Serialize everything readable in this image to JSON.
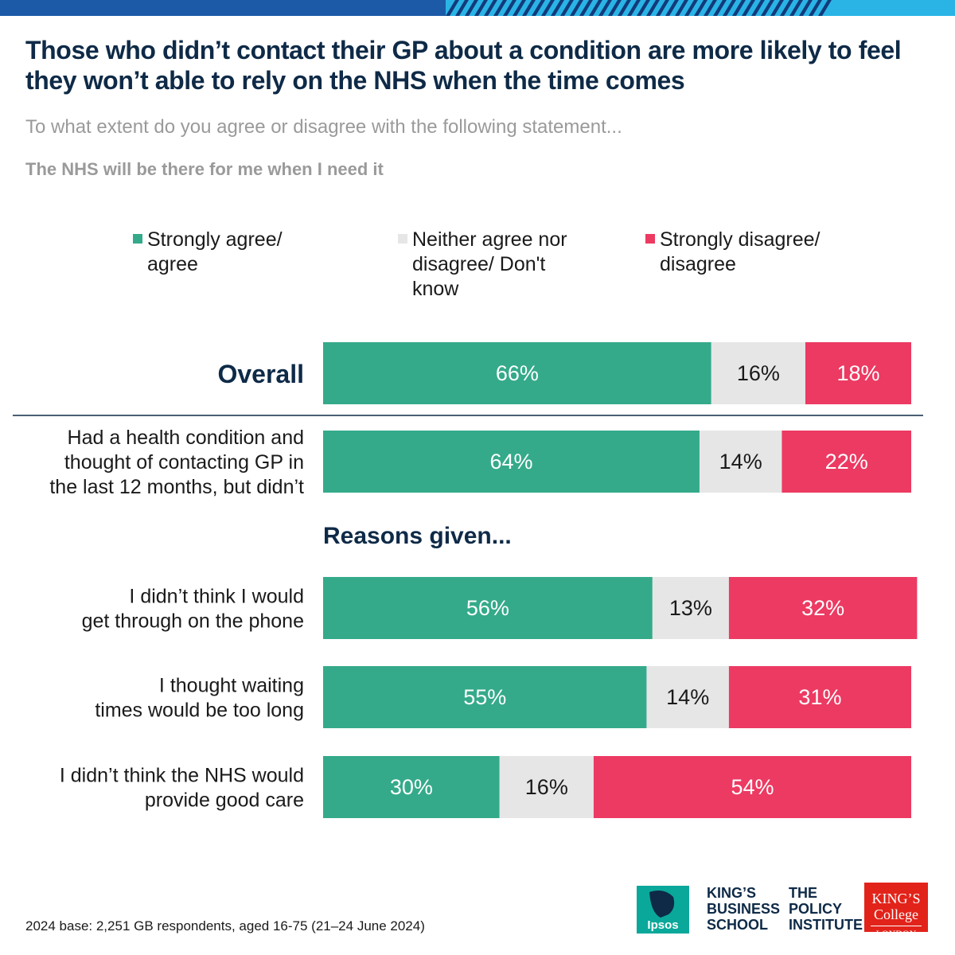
{
  "header": {
    "title": "Those who didn’t contact their GP about a condition are more likely to feel they won’t able to rely on the NHS when the time comes",
    "subtitle": "To what extent do you agree or disagree with the following statement...",
    "statement": "The NHS will be there for me when I need it"
  },
  "colors": {
    "agree": "#34aa8a",
    "neither": "#e6e6e6",
    "disagree": "#ec3a62",
    "title": "#0e2a47",
    "band_dark": "#123a7a",
    "band_light": "#2ab4e6"
  },
  "legend": {
    "agree": "Strongly agree/ agree",
    "neither": "Neither agree nor disagree/ Don't know",
    "disagree": "Strongly disagree/ disagree"
  },
  "chart_data": {
    "type": "bar",
    "orientation": "horizontal",
    "stacked": true,
    "categories": [
      "Overall",
      "Had a health condition and thought of contacting GP in the last 12 months, but didn’t",
      "I didn’t think I would get through on the phone",
      "I thought waiting times would be too long",
      "I didn’t think the NHS would provide good care"
    ],
    "category_lines": [
      [
        "Overall"
      ],
      [
        "Had a health condition and",
        "thought of contacting GP in",
        "the last 12 months, but didn’t"
      ],
      [
        "I didn’t think I would",
        "get through on the phone"
      ],
      [
        "I thought waiting",
        "times would be too long"
      ],
      [
        "I didn’t think the NHS would",
        "provide good care"
      ]
    ],
    "series": [
      {
        "name": "Strongly agree/ agree",
        "values": [
          66,
          64,
          56,
          55,
          30
        ]
      },
      {
        "name": "Neither agree nor disagree/ Don't know",
        "values": [
          16,
          14,
          13,
          14,
          16
        ]
      },
      {
        "name": "Strongly disagree/ disagree",
        "values": [
          18,
          22,
          32,
          31,
          54
        ]
      }
    ],
    "data_labels": [
      [
        "66%",
        "16%",
        "18%"
      ],
      [
        "64%",
        "14%",
        "22%"
      ],
      [
        "56%",
        "13%",
        "32%"
      ],
      [
        "55%",
        "14%",
        "31%"
      ],
      [
        "30%",
        "16%",
        "54%"
      ]
    ],
    "group_heading": "Reasons given...",
    "xlim": [
      0,
      100
    ],
    "legend_position": "top",
    "grid": false
  },
  "footer": {
    "footnote": "2024 base: 2,251 GB respondents, aged 16-75 (21–24 June 2024)",
    "logos": {
      "ipsos": "Ipsos",
      "kbs": [
        "KING’S",
        "BUSINESS",
        "SCHOOL"
      ],
      "tpi": [
        "THE",
        "POLICY",
        "INSTITUTE"
      ],
      "kcl": [
        "KING’S College",
        "LONDON"
      ]
    }
  }
}
